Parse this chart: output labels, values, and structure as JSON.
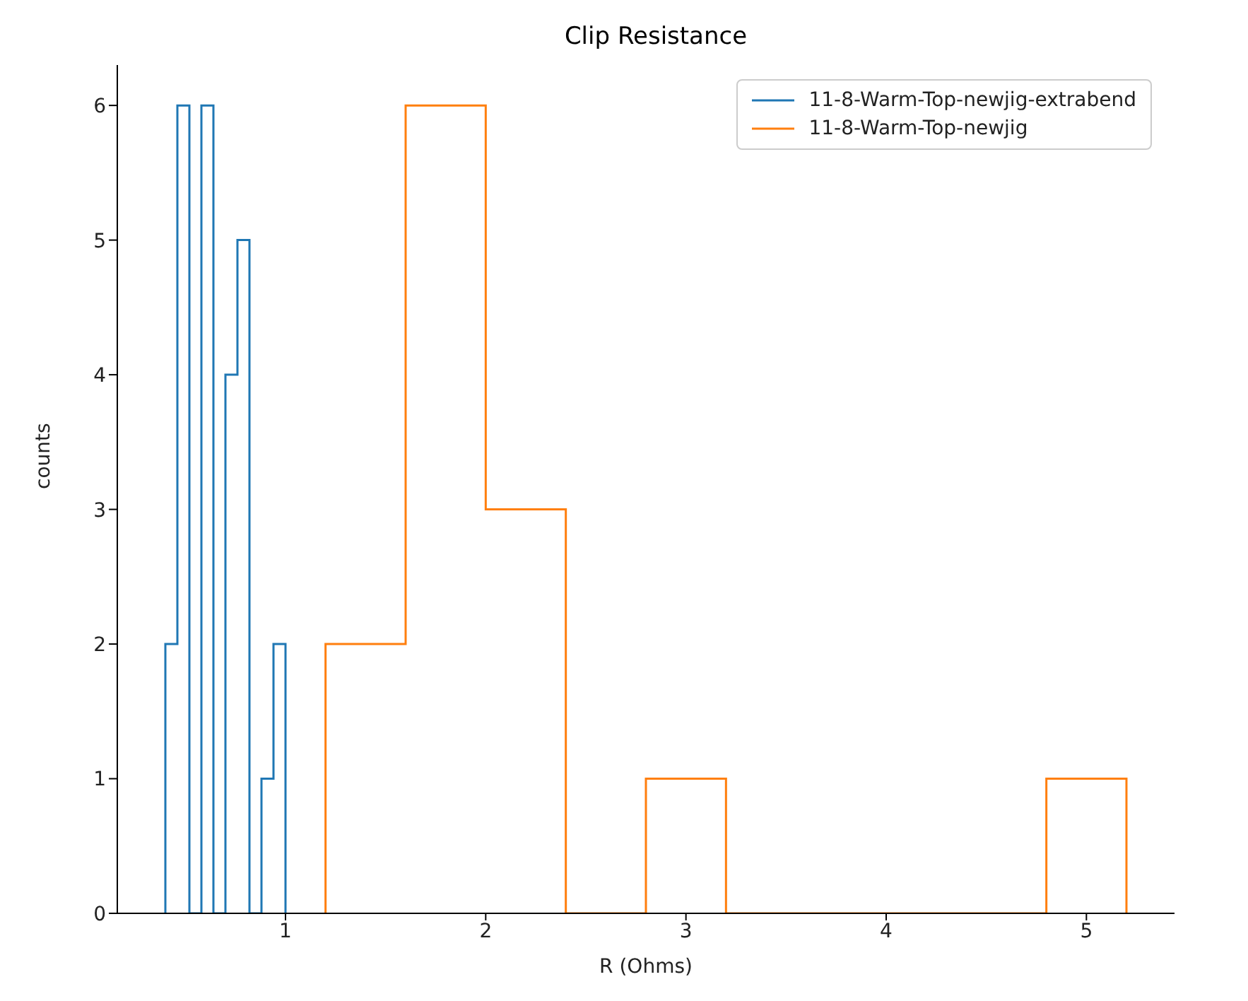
{
  "chart_data": {
    "type": "step",
    "title": "Clip Resistance",
    "xlabel": "R (Ohms)",
    "ylabel": "counts",
    "series": [
      {
        "name": "11-8-Warm-Top-newjig-extrabend",
        "color": "#1f77b4",
        "x": [
          0.4,
          0.4,
          0.46,
          0.52,
          0.58,
          0.64,
          0.7,
          0.76,
          0.82,
          0.88,
          0.94,
          1.0
        ],
        "values": [
          0,
          2,
          6,
          0,
          6,
          0,
          4,
          5,
          0,
          1,
          2,
          0
        ]
      },
      {
        "name": "11-8-Warm-Top-newjig",
        "color": "#ff7f0e",
        "x": [
          1.2,
          1.2,
          1.6,
          2.0,
          2.4,
          2.8,
          3.2,
          3.6,
          4.0,
          4.4,
          4.8,
          5.2
        ],
        "values": [
          0,
          2,
          6,
          3,
          0,
          1,
          0,
          0,
          0,
          0,
          1,
          0
        ]
      }
    ],
    "xlim": [
      0.16,
      5.44
    ],
    "xticks": [
      1,
      2,
      3,
      4,
      5
    ],
    "ylim": [
      0,
      6.3
    ],
    "yticks": [
      0,
      1,
      2,
      3,
      4,
      5,
      6
    ],
    "grid": false,
    "legend": "top right"
  }
}
